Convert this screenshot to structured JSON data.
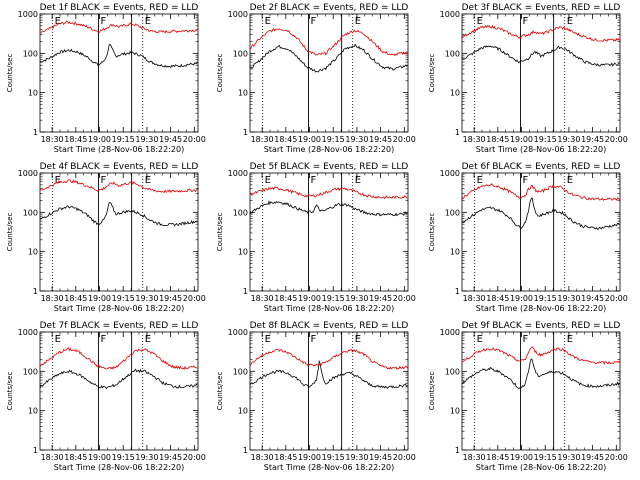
{
  "figure": {
    "xlabel": "Start Time (28-Nov-06 18:22:20)",
    "ylabel": "Counts/sec",
    "x_ticks": [
      "18:30",
      "18:45",
      "19:00",
      "19:15",
      "19:30",
      "19:45",
      "20:00"
    ],
    "y_ticks": [
      "1",
      "10",
      "100",
      "1000"
    ],
    "legend_text": "BLACK = Events, RED = LLD",
    "marker_labels": [
      "E",
      "F",
      "E"
    ]
  },
  "colors": {
    "events": "#000000",
    "lld": "#e00000",
    "axes": "#000000"
  },
  "chart_data": [
    {
      "type": "line",
      "title": "Det 1f BLACK = Events, RED = LLD",
      "x_unit": "minutes after 18:22:20",
      "xlim": [
        0,
        100
      ],
      "ylim": [
        1,
        1000
      ],
      "y_scale": "log",
      "dotted_markers": [
        8,
        65
      ],
      "solid_markers": [
        37,
        58
      ],
      "series": [
        {
          "name": "Events",
          "x": [
            0,
            6,
            12,
            18,
            24,
            30,
            34,
            37,
            40,
            42,
            44,
            46,
            48,
            52,
            58,
            64,
            70,
            76,
            82,
            88,
            94,
            100
          ],
          "y": [
            60,
            75,
            105,
            120,
            108,
            80,
            60,
            50,
            62,
            80,
            170,
            120,
            85,
            95,
            105,
            88,
            60,
            50,
            47,
            48,
            52,
            55
          ]
        },
        {
          "name": "LLD",
          "x": [
            0,
            6,
            12,
            18,
            24,
            30,
            34,
            37,
            40,
            43,
            46,
            50,
            54,
            58,
            62,
            66,
            70,
            76,
            82,
            88,
            94,
            100
          ],
          "y": [
            320,
            420,
            560,
            620,
            560,
            470,
            400,
            360,
            400,
            470,
            540,
            470,
            520,
            560,
            500,
            420,
            370,
            350,
            360,
            370,
            380,
            390
          ]
        }
      ]
    },
    {
      "type": "line",
      "title": "Det 2f BLACK = Events, RED = LLD",
      "x_unit": "minutes after 18:22:20",
      "xlim": [
        0,
        100
      ],
      "ylim": [
        1,
        1000
      ],
      "y_scale": "log",
      "dotted_markers": [
        8,
        65
      ],
      "solid_markers": [
        37,
        58
      ],
      "series": [
        {
          "name": "Events",
          "x": [
            0,
            6,
            12,
            18,
            24,
            30,
            36,
            42,
            48,
            54,
            60,
            66,
            72,
            78,
            84,
            90,
            96,
            100
          ],
          "y": [
            40,
            65,
            110,
            150,
            130,
            80,
            45,
            35,
            42,
            70,
            130,
            160,
            120,
            70,
            45,
            40,
            45,
            50
          ]
        },
        {
          "name": "LLD",
          "x": [
            0,
            6,
            12,
            18,
            24,
            30,
            36,
            42,
            48,
            54,
            60,
            66,
            72,
            78,
            84,
            90,
            96,
            100
          ],
          "y": [
            130,
            230,
            360,
            430,
            380,
            240,
            120,
            90,
            100,
            170,
            300,
            380,
            320,
            190,
            110,
            90,
            100,
            110
          ]
        }
      ]
    },
    {
      "type": "line",
      "title": "Det 3f BLACK = Events, RED = LLD",
      "x_unit": "minutes after 18:22:20",
      "xlim": [
        0,
        100
      ],
      "ylim": [
        1,
        1000
      ],
      "y_scale": "log",
      "dotted_markers": [
        8,
        65
      ],
      "solid_markers": [
        37,
        58
      ],
      "series": [
        {
          "name": "Events",
          "x": [
            0,
            6,
            12,
            18,
            24,
            30,
            36,
            42,
            46,
            50,
            54,
            58,
            62,
            66,
            72,
            78,
            84,
            90,
            96,
            100
          ],
          "y": [
            70,
            95,
            135,
            155,
            125,
            85,
            60,
            75,
            110,
            85,
            100,
            120,
            145,
            125,
            85,
            60,
            52,
            50,
            52,
            55
          ]
        },
        {
          "name": "LLD",
          "x": [
            0,
            6,
            12,
            18,
            24,
            30,
            36,
            42,
            46,
            50,
            54,
            58,
            62,
            66,
            72,
            78,
            84,
            90,
            96,
            100
          ],
          "y": [
            260,
            350,
            450,
            480,
            420,
            320,
            260,
            300,
            360,
            310,
            350,
            410,
            460,
            420,
            320,
            260,
            220,
            215,
            215,
            220
          ]
        }
      ]
    },
    {
      "type": "line",
      "title": "Det 4f BLACK = Events, RED = LLD",
      "x_unit": "minutes after 18:22:20",
      "xlim": [
        0,
        100
      ],
      "ylim": [
        1,
        1000
      ],
      "y_scale": "log",
      "dotted_markers": [
        8,
        65
      ],
      "solid_markers": [
        37,
        58
      ],
      "series": [
        {
          "name": "Events",
          "x": [
            0,
            6,
            12,
            18,
            24,
            30,
            34,
            37,
            40,
            42,
            44,
            46,
            48,
            52,
            58,
            64,
            70,
            76,
            82,
            88,
            94,
            100
          ],
          "y": [
            65,
            90,
            120,
            140,
            120,
            85,
            60,
            50,
            62,
            85,
            190,
            130,
            90,
            100,
            110,
            90,
            62,
            50,
            48,
            50,
            55,
            60
          ]
        },
        {
          "name": "LLD",
          "x": [
            0,
            6,
            12,
            18,
            24,
            30,
            34,
            37,
            40,
            43,
            46,
            50,
            54,
            58,
            62,
            66,
            70,
            76,
            82,
            88,
            94,
            100
          ],
          "y": [
            350,
            460,
            580,
            640,
            570,
            470,
            400,
            360,
            400,
            480,
            560,
            480,
            530,
            570,
            510,
            420,
            370,
            340,
            340,
            350,
            360,
            370
          ]
        }
      ]
    },
    {
      "type": "line",
      "title": "Det 5f BLACK = Events, RED = LLD",
      "x_unit": "minutes after 18:22:20",
      "xlim": [
        0,
        100
      ],
      "ylim": [
        1,
        1000
      ],
      "y_scale": "log",
      "dotted_markers": [
        8,
        65
      ],
      "solid_markers": [
        37,
        58
      ],
      "series": [
        {
          "name": "Events",
          "x": [
            0,
            6,
            12,
            18,
            24,
            30,
            36,
            40,
            42,
            44,
            46,
            50,
            56,
            62,
            66,
            72,
            78,
            84,
            90,
            96,
            100
          ],
          "y": [
            95,
            135,
            175,
            185,
            160,
            125,
            100,
            105,
            150,
            115,
            105,
            125,
            160,
            155,
            125,
            100,
            90,
            88,
            88,
            90,
            95
          ]
        },
        {
          "name": "LLD",
          "x": [
            0,
            6,
            12,
            18,
            24,
            30,
            36,
            42,
            48,
            54,
            60,
            66,
            72,
            78,
            84,
            90,
            96,
            100
          ],
          "y": [
            280,
            340,
            400,
            410,
            360,
            300,
            260,
            270,
            320,
            390,
            400,
            340,
            280,
            250,
            240,
            240,
            245,
            250
          ]
        }
      ]
    },
    {
      "type": "line",
      "title": "Det 6f BLACK = Events, RED = LLD",
      "x_unit": "minutes after 18:22:20",
      "xlim": [
        0,
        100
      ],
      "ylim": [
        1,
        1000
      ],
      "y_scale": "log",
      "dotted_markers": [
        8,
        65
      ],
      "solid_markers": [
        37,
        58
      ],
      "series": [
        {
          "name": "Events",
          "x": [
            0,
            6,
            12,
            18,
            24,
            30,
            34,
            37,
            40,
            42,
            44,
            46,
            48,
            52,
            58,
            64,
            70,
            76,
            82,
            88,
            94,
            100
          ],
          "y": [
            55,
            80,
            115,
            130,
            110,
            75,
            50,
            40,
            55,
            110,
            250,
            120,
            80,
            90,
            110,
            95,
            60,
            45,
            40,
            40,
            45,
            50
          ]
        },
        {
          "name": "LLD",
          "x": [
            0,
            6,
            12,
            18,
            24,
            30,
            34,
            37,
            40,
            42,
            44,
            47,
            50,
            54,
            58,
            62,
            66,
            70,
            76,
            82,
            88,
            94,
            100
          ],
          "y": [
            230,
            330,
            450,
            500,
            440,
            340,
            270,
            240,
            270,
            380,
            470,
            350,
            330,
            400,
            470,
            440,
            350,
            280,
            240,
            220,
            215,
            215,
            220
          ]
        }
      ]
    },
    {
      "type": "line",
      "title": "Det 7f BLACK = Events, RED = LLD",
      "x_unit": "minutes after 18:22:20",
      "xlim": [
        0,
        100
      ],
      "ylim": [
        1,
        1000
      ],
      "y_scale": "log",
      "dotted_markers": [
        8,
        65
      ],
      "solid_markers": [
        37,
        58
      ],
      "series": [
        {
          "name": "Events",
          "x": [
            0,
            6,
            12,
            18,
            24,
            30,
            36,
            42,
            48,
            54,
            60,
            66,
            72,
            78,
            84,
            90,
            96,
            100
          ],
          "y": [
            40,
            60,
            85,
            100,
            85,
            60,
            42,
            38,
            45,
            70,
            105,
            100,
            75,
            50,
            42,
            40,
            42,
            45
          ]
        },
        {
          "name": "LLD",
          "x": [
            0,
            6,
            12,
            18,
            24,
            30,
            36,
            42,
            48,
            54,
            60,
            66,
            72,
            78,
            84,
            90,
            96,
            100
          ],
          "y": [
            140,
            200,
            300,
            370,
            320,
            220,
            140,
            115,
            125,
            200,
            330,
            360,
            280,
            180,
            130,
            120,
            125,
            130
          ]
        }
      ]
    },
    {
      "type": "line",
      "title": "Det 8f BLACK = Events, RED = LLD",
      "x_unit": "minutes after 18:22:20",
      "xlim": [
        0,
        100
      ],
      "ylim": [
        1,
        1000
      ],
      "y_scale": "log",
      "dotted_markers": [
        8,
        65
      ],
      "solid_markers": [
        37,
        58
      ],
      "series": [
        {
          "name": "Events",
          "x": [
            0,
            6,
            12,
            18,
            24,
            30,
            34,
            38,
            42,
            44,
            46,
            48,
            52,
            58,
            64,
            70,
            76,
            82,
            88,
            94,
            100
          ],
          "y": [
            45,
            65,
            90,
            100,
            90,
            65,
            45,
            40,
            60,
            200,
            70,
            50,
            65,
            85,
            90,
            65,
            45,
            40,
            40,
            42,
            45
          ]
        },
        {
          "name": "LLD",
          "x": [
            0,
            6,
            12,
            18,
            24,
            30,
            36,
            42,
            48,
            54,
            60,
            66,
            72,
            78,
            84,
            90,
            96,
            100
          ],
          "y": [
            150,
            230,
            310,
            350,
            300,
            210,
            150,
            140,
            170,
            240,
            320,
            340,
            270,
            170,
            130,
            120,
            125,
            130
          ]
        }
      ]
    },
    {
      "type": "line",
      "title": "Det 9f BLACK = Events, RED = LLD",
      "x_unit": "minutes after 18:22:20",
      "xlim": [
        0,
        100
      ],
      "ylim": [
        1,
        1000
      ],
      "y_scale": "log",
      "dotted_markers": [
        8,
        65
      ],
      "solid_markers": [
        37,
        58
      ],
      "series": [
        {
          "name": "Events",
          "x": [
            0,
            6,
            12,
            18,
            24,
            30,
            34,
            37,
            40,
            42,
            44,
            46,
            48,
            52,
            58,
            64,
            70,
            76,
            82,
            88,
            94,
            100
          ],
          "y": [
            50,
            75,
            105,
            115,
            95,
            65,
            45,
            35,
            50,
            100,
            230,
            110,
            75,
            85,
            100,
            90,
            60,
            45,
            42,
            42,
            45,
            50
          ]
        },
        {
          "name": "LLD",
          "x": [
            0,
            6,
            12,
            18,
            24,
            30,
            34,
            37,
            40,
            42,
            44,
            47,
            50,
            54,
            58,
            62,
            66,
            70,
            76,
            82,
            88,
            94,
            100
          ],
          "y": [
            170,
            250,
            340,
            380,
            330,
            250,
            200,
            180,
            200,
            300,
            420,
            300,
            260,
            300,
            360,
            380,
            320,
            240,
            190,
            170,
            165,
            165,
            170
          ]
        }
      ]
    }
  ]
}
